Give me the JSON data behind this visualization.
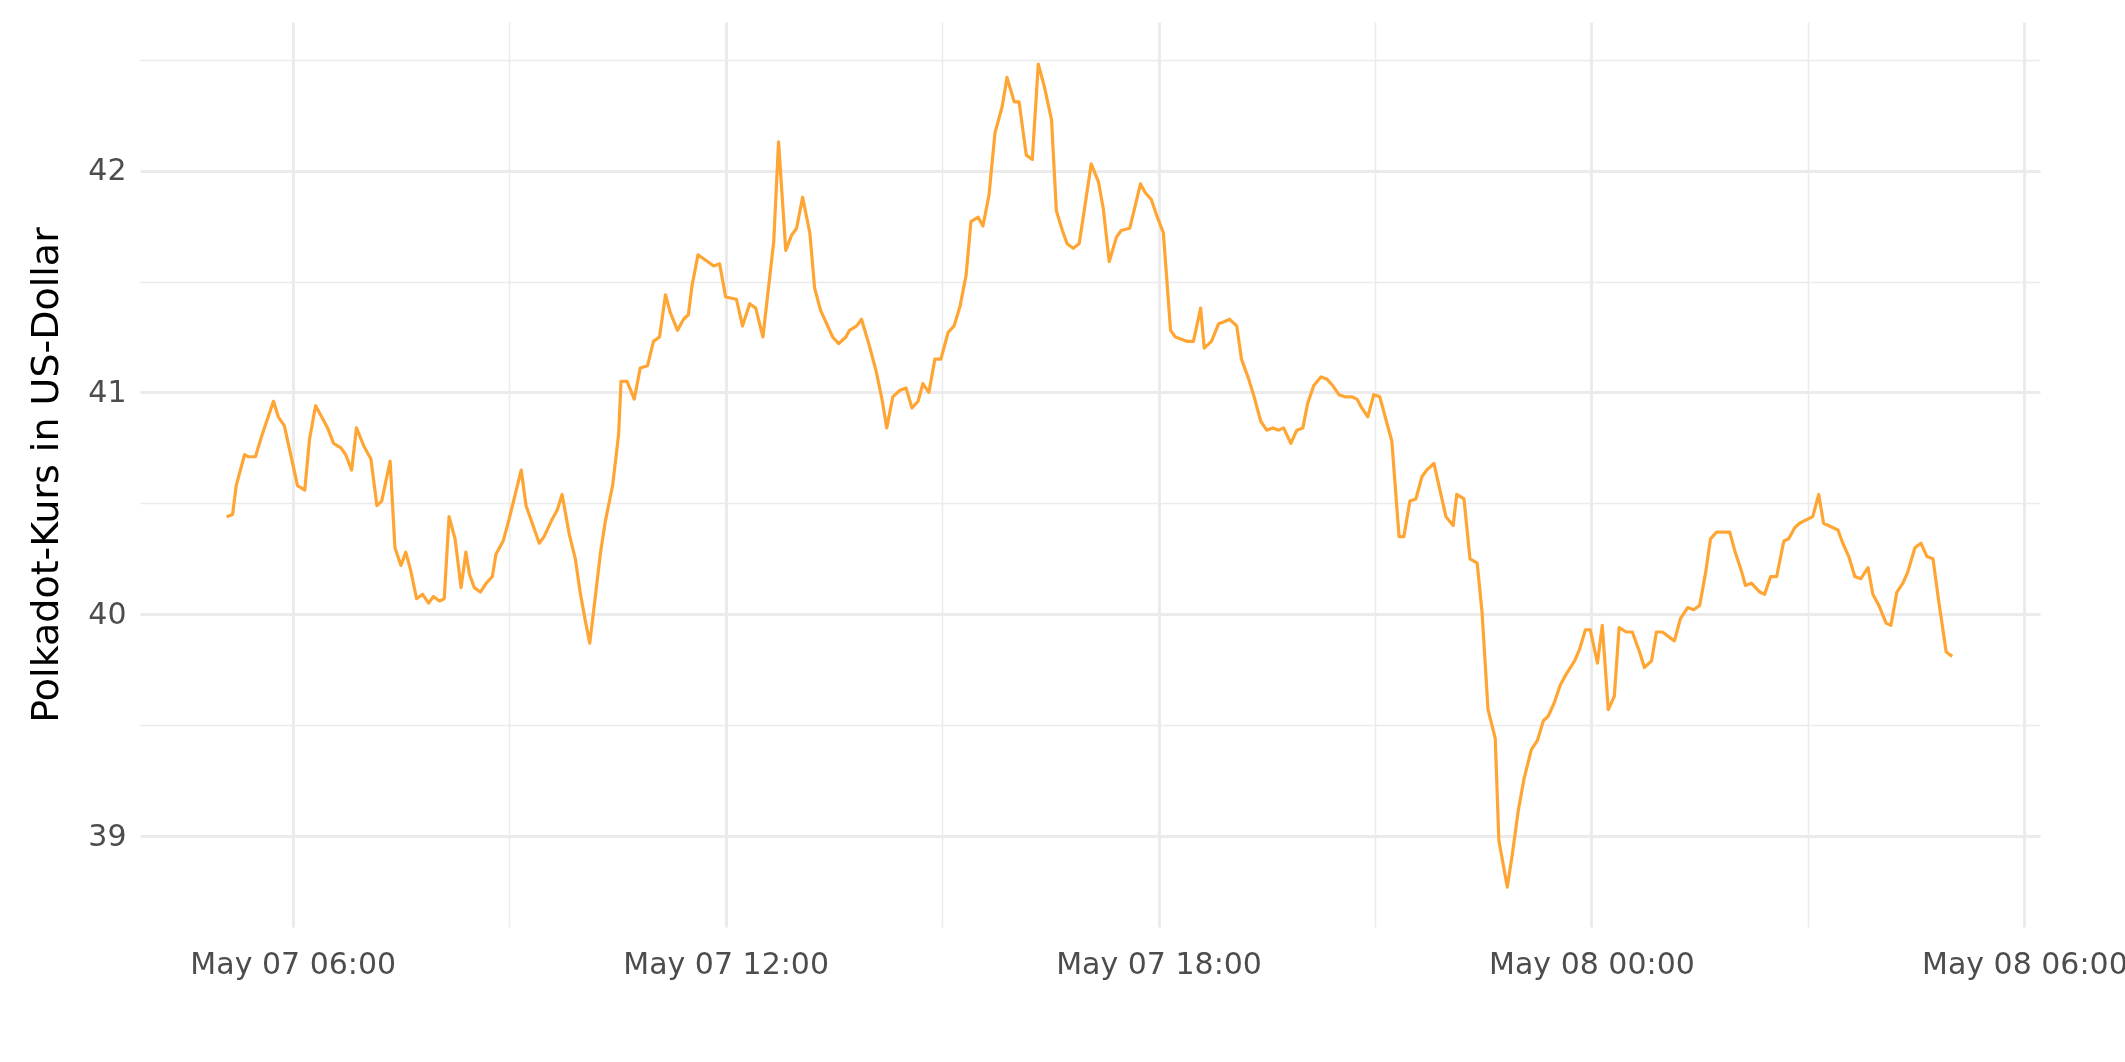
{
  "chart_data": {
    "type": "line",
    "ylabel": "Polkadot-Kurs in US-Dollar",
    "xlim": [
      "--05-07T03:53",
      "--05-08T06:13"
    ],
    "ylim": [
      38.59,
      42.67
    ],
    "xticks": [
      {
        "value": "--05-07T06:00",
        "label": "May 07 06:00"
      },
      {
        "value": "--05-07T09:00",
        "label": null
      },
      {
        "value": "--05-07T12:00",
        "label": "May 07 12:00"
      },
      {
        "value": "--05-07T15:00",
        "label": null
      },
      {
        "value": "--05-07T18:00",
        "label": "May 07 18:00"
      },
      {
        "value": "--05-07T21:00",
        "label": null
      },
      {
        "value": "--05-08T00:00",
        "label": "May 08 00:00"
      },
      {
        "value": "--05-08T03:00",
        "label": null
      },
      {
        "value": "--05-08T06:00",
        "label": "May 08 06:00"
      }
    ],
    "yticks": [
      39,
      {
        "value": 39.5,
        "label": null
      },
      40,
      {
        "value": 40.5,
        "label": null
      },
      41,
      {
        "value": 41.5,
        "label": null
      },
      42,
      {
        "value": 42.5,
        "label": null
      }
    ],
    "grid": true,
    "series": [
      {
        "color": "#ffa533",
        "x": [
          "--05-07T05:05",
          "--05-07T05:10",
          "--05-07T05:13",
          "--05-07T05:20",
          "--05-07T05:23",
          "--05-07T05:29",
          "--05-07T05:34",
          "--05-07T05:44",
          "--05-07T05:48",
          "--05-07T05:53",
          "--05-07T06:04",
          "--05-07T06:10",
          "--05-07T06:14",
          "--05-07T06:19",
          "--05-07T06:23",
          "--05-07T06:29",
          "--05-07T06:34",
          "--05-07T06:40",
          "--05-07T06:44",
          "--05-07T06:49",
          "--05-07T06:53",
          "--05-07T06:59",
          "--05-07T07:05",
          "--05-07T07:10",
          "--05-07T07:14",
          "--05-07T07:21",
          "--05-07T07:25",
          "--05-07T07:30",
          "--05-07T07:34",
          "--05-07T07:38",
          "--05-07T07:43",
          "--05-07T07:48",
          "--05-07T07:53",
          "--05-07T07:57",
          "--05-07T08:02",
          "--05-07T08:06",
          "--05-07T08:10",
          "--05-07T08:15",
          "--05-07T08:20",
          "--05-07T08:24",
          "--05-07T08:27",
          "--05-07T08:31",
          "--05-07T08:36",
          "--05-07T08:41",
          "--05-07T08:46",
          "--05-07T08:49",
          "--05-07T08:55",
          "--05-07T09:00",
          "--05-07T09:10",
          "--05-07T09:14",
          "--05-07T09:25",
          "--05-07T09:29",
          "--05-07T09:35",
          "--05-07T09:40",
          "--05-07T09:44",
          "--05-07T09:50",
          "--05-07T09:55",
          "--05-07T09:59",
          "--05-07T10:03",
          "--05-07T10:07",
          "--05-07T10:11",
          "--05-07T10:16",
          "--05-07T10:20",
          "--05-07T10:26",
          "--05-07T10:31",
          "--05-07T10:33",
          "--05-07T10:38",
          "--05-07T10:44",
          "--05-07T10:49",
          "--05-07T10:55",
          "--05-07T11:00",
          "--05-07T11:05",
          "--05-07T11:10",
          "--05-07T11:14",
          "--05-07T11:20",
          "--05-07T11:25",
          "--05-07T11:29",
          "--05-07T11:32",
          "--05-07T11:37",
          "--05-07T11:45",
          "--05-07T11:50",
          "--05-07T11:55",
          "--05-07T12:00",
          "--05-07T12:09",
          "--05-07T12:14",
          "--05-07T12:20",
          "--05-07T12:25",
          "--05-07T12:31",
          "--05-07T12:40",
          "--05-07T12:44",
          "--05-07T12:50",
          "--05-07T12:55",
          "--05-07T12:59",
          "--05-07T13:04",
          "--05-07T13:10",
          "--05-07T13:14",
          "--05-07T13:19",
          "--05-07T13:29",
          "--05-07T13:34",
          "--05-07T13:40",
          "--05-07T13:43",
          "--05-07T13:49",
          "--05-07T13:53",
          "--05-07T13:59",
          "--05-07T14:05",
          "--05-07T14:10",
          "--05-07T14:14",
          "--05-07T14:19",
          "--05-07T14:25",
          "--05-07T14:30",
          "--05-07T14:35",
          "--05-07T14:40",
          "--05-07T14:44",
          "--05-07T14:49",
          "--05-07T14:54",
          "--05-07T14:59",
          "--05-07T15:05",
          "--05-07T15:10",
          "--05-07T15:15",
          "--05-07T15:20",
          "--05-07T15:24",
          "--05-07T15:30",
          "--05-07T15:34",
          "--05-07T15:39",
          "--05-07T15:44",
          "--05-07T15:50",
          "--05-07T15:54",
          "--05-07T16:00",
          "--05-07T16:04",
          "--05-07T16:10",
          "--05-07T16:15",
          "--05-07T16:20",
          "--05-07T16:25",
          "--05-07T16:31",
          "--05-07T16:35",
          "--05-07T16:40",
          "--05-07T16:44",
          "--05-07T16:49",
          "--05-07T16:54",
          "--05-07T16:59",
          "--05-07T17:04",
          "--05-07T17:10",
          "--05-07T17:14",
          "--05-07T17:19",
          "--05-07T17:25",
          "--05-07T17:29",
          "--05-07T17:36",
          "--05-07T17:45",
          "--05-07T17:49",
          "--05-07T17:54",
          "--05-07T17:59",
          "--05-07T18:04",
          "--05-07T18:10",
          "--05-07T18:14",
          "--05-07T18:19",
          "--05-07T18:24",
          "--05-07T18:29",
          "--05-07T18:35",
          "--05-07T18:38",
          "--05-07T18:44",
          "--05-07T18:50",
          "--05-07T18:55",
          "--05-07T18:59",
          "--05-07T19:05",
          "--05-07T19:09",
          "--05-07T19:15",
          "--05-07T19:20",
          "--05-07T19:25",
          "--05-07T19:30",
          "--05-07T19:35",
          "--05-07T19:40",
          "--05-07T19:44",
          "--05-07T19:50",
          "--05-07T19:55",
          "--05-07T20:00",
          "--05-07T20:04",
          "--05-07T20:09",
          "--05-07T20:15",
          "--05-07T20:20",
          "--05-07T20:25",
          "--05-07T20:30",
          "--05-07T20:35",
          "--05-07T20:41",
          "--05-07T20:45",
          "--05-07T20:49",
          "--05-07T20:54",
          "--05-07T20:59",
          "--05-07T21:04",
          "--05-07T21:09",
          "--05-07T21:14",
          "--05-07T21:20",
          "--05-07T21:24",
          "--05-07T21:29",
          "--05-07T21:34",
          "--05-07T21:39",
          "--05-07T21:43",
          "--05-07T21:49",
          "--05-07T21:59",
          "--05-07T22:05",
          "--05-07T22:08",
          "--05-07T22:14",
          "--05-07T22:19",
          "--05-07T22:25",
          "--05-07T22:29",
          "--05-07T22:34",
          "--05-07T22:40",
          "--05-07T22:43",
          "--05-07T22:50",
          "--05-07T22:54",
          "--05-07T22:59",
          "--05-07T23:04",
          "--05-07T23:10",
          "--05-07T23:15",
          "--05-07T23:20",
          "--05-07T23:24",
          "--05-07T23:29",
          "--05-07T23:34",
          "--05-07T23:39",
          "--05-07T23:46",
          "--05-07T23:50",
          "--05-07T23:55",
          "--05-07T23:59",
          "--05-08T00:05",
          "--05-08T00:09",
          "--05-08T00:14",
          "--05-08T00:19",
          "--05-08T00:23",
          "--05-08T00:29",
          "--05-08T00:34",
          "--05-08T00:40",
          "--05-08T00:44",
          "--05-08T00:50",
          "--05-08T00:54",
          "--05-08T00:59",
          "--05-08T01:09",
          "--05-08T01:14",
          "--05-08T01:20",
          "--05-08T01:25",
          "--05-08T01:30",
          "--05-08T01:35",
          "--05-08T01:39",
          "--05-08T01:44",
          "--05-08T01:50",
          "--05-08T01:55",
          "--05-08T01:59",
          "--05-08T02:05",
          "--05-08T02:08",
          "--05-08T02:13",
          "--05-08T02:20",
          "--05-08T02:24",
          "--05-08T02:29",
          "--05-08T02:34",
          "--05-08T02:40",
          "--05-08T02:44",
          "--05-08T02:49",
          "--05-08T02:53",
          "--05-08T03:04",
          "--05-08T03:09",
          "--05-08T03:13",
          "--05-08T03:25",
          "--05-08T03:29",
          "--05-08T03:34",
          "--05-08T03:39",
          "--05-08T03:44",
          "--05-08T03:50",
          "--05-08T03:54",
          "--05-08T03:59",
          "--05-08T04:05",
          "--05-08T04:09",
          "--05-08T04:14",
          "--05-08T04:19",
          "--05-08T04:23",
          "--05-08T04:29",
          "--05-08T04:34",
          "--05-08T04:39",
          "--05-08T04:44",
          "--05-08T04:49",
          "--05-08T04:55",
          "--05-08T05:00"
        ],
        "values": [
          40.44,
          40.45,
          40.58,
          40.72,
          40.71,
          40.71,
          40.8,
          40.96,
          40.89,
          40.85,
          40.58,
          40.56,
          40.79,
          40.94,
          40.9,
          40.84,
          40.77,
          40.75,
          40.72,
          40.65,
          40.84,
          40.76,
          40.7,
          40.49,
          40.51,
          40.69,
          40.3,
          40.22,
          40.28,
          40.2,
          40.07,
          40.09,
          40.05,
          40.08,
          40.06,
          40.07,
          40.44,
          40.34,
          40.12,
          40.28,
          40.18,
          40.12,
          40.1,
          40.14,
          40.17,
          40.27,
          40.33,
          40.43,
          40.65,
          40.49,
          40.32,
          40.35,
          40.42,
          40.47,
          40.54,
          40.36,
          40.25,
          40.1,
          39.98,
          39.87,
          40.05,
          40.28,
          40.42,
          40.58,
          40.81,
          41.05,
          41.05,
          40.97,
          41.11,
          41.12,
          41.23,
          41.25,
          41.44,
          41.36,
          41.28,
          41.33,
          41.35,
          41.48,
          41.62,
          41.59,
          41.57,
          41.58,
          41.43,
          41.42,
          41.3,
          41.4,
          41.38,
          41.25,
          41.68,
          42.13,
          41.64,
          41.71,
          41.74,
          41.88,
          41.72,
          41.47,
          41.37,
          41.25,
          41.22,
          41.25,
          41.28,
          41.3,
          41.33,
          41.22,
          41.1,
          40.97,
          40.84,
          40.98,
          41.01,
          41.02,
          40.93,
          40.96,
          41.04,
          41.0,
          41.15,
          41.15,
          41.27,
          41.3,
          41.39,
          41.53,
          41.77,
          41.79,
          41.75,
          41.89,
          42.17,
          42.29,
          42.42,
          42.31,
          42.31,
          42.07,
          42.05,
          42.48,
          42.38,
          42.23,
          41.82,
          41.73,
          41.67,
          41.65,
          41.67,
          41.85,
          42.03,
          41.95,
          41.83,
          41.59,
          41.7,
          41.73,
          41.74,
          41.94,
          41.9,
          41.87,
          41.79,
          41.72,
          41.28,
          41.25,
          41.24,
          41.23,
          41.23,
          41.38,
          41.2,
          41.23,
          41.31,
          41.32,
          41.33,
          41.3,
          41.15,
          41.06,
          40.97,
          40.87,
          40.83,
          40.84,
          40.83,
          40.84,
          40.77,
          40.83,
          40.84,
          40.95,
          41.03,
          41.07,
          41.06,
          41.03,
          40.99,
          40.98,
          40.98,
          40.97,
          40.93,
          40.89,
          40.99,
          40.98,
          40.88,
          40.78,
          40.35,
          40.35,
          40.51,
          40.52,
          40.62,
          40.65,
          40.68,
          40.44,
          40.4,
          40.54,
          40.52,
          40.25,
          40.23,
          40.01,
          39.57,
          39.44,
          38.98,
          38.77,
          38.91,
          39.11,
          39.26,
          39.39,
          39.43,
          39.52,
          39.54,
          39.6,
          39.68,
          39.73,
          39.79,
          39.84,
          39.93,
          39.93,
          39.78,
          39.95,
          39.57,
          39.63,
          39.94,
          39.92,
          39.92,
          39.83,
          39.76,
          39.79,
          39.92,
          39.92,
          39.88,
          39.98,
          40.03,
          40.02,
          40.04,
          40.19,
          40.34,
          40.37,
          40.37,
          40.37,
          40.29,
          40.19,
          40.13,
          40.14,
          40.1,
          40.09,
          40.17,
          40.17,
          40.33,
          40.34,
          40.39,
          40.41,
          40.44,
          40.54,
          40.41,
          40.38,
          40.32,
          40.26,
          40.17,
          40.16,
          40.21,
          40.09,
          40.04,
          39.96,
          39.95,
          40.1,
          40.14,
          40.19,
          40.3,
          40.32,
          40.26,
          40.25,
          40.05,
          39.83,
          39.81
        ]
      }
    ]
  }
}
